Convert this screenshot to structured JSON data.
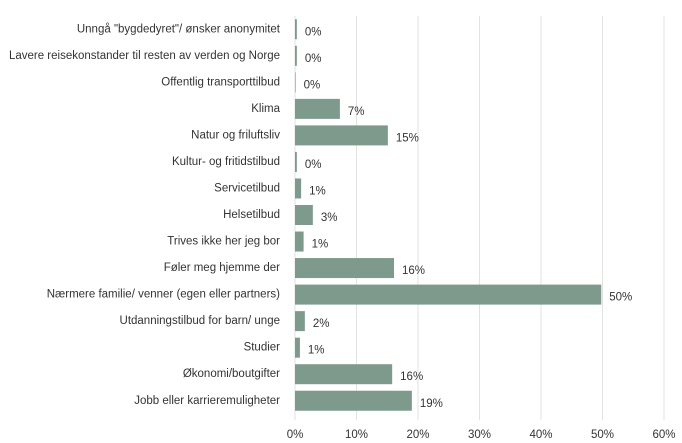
{
  "chart_data": {
    "type": "bar",
    "orientation": "horizontal",
    "categories": [
      "Unngå \"bygdedyret\"/ ønsker anonymitet",
      "Lavere reisekonstander til resten av verden og Norge",
      "Offentlig transporttilbud",
      "Klima",
      "Natur og friluftsliv",
      "Kultur- og fritidstilbud",
      "Servicetilbud",
      "Helsetilbud",
      "Trives ikke her jeg bor",
      "Føler meg hjemme der",
      "Nærmere familie/ venner (egen eller partners)",
      "Utdanningstilbud for barn/ unge",
      "Studier",
      "Økonomi/boutgifter",
      "Jobb eller karrieremuligheter"
    ],
    "values": [
      0.3,
      0.3,
      0.1,
      7.3,
      15.1,
      0.3,
      1.0,
      2.9,
      1.4,
      16.1,
      49.8,
      1.6,
      0.8,
      15.8,
      19.0
    ],
    "value_labels": [
      "0%",
      "0%",
      "0%",
      "7%",
      "15%",
      "0%",
      "1%",
      "3%",
      "1%",
      "16%",
      "50%",
      "2%",
      "1%",
      "16%",
      "19%"
    ],
    "color": "#7d9a8c",
    "xlim": [
      0,
      60
    ],
    "xticks": [
      {
        "value": 0,
        "label": "0%"
      },
      {
        "value": 10,
        "label": "10%"
      },
      {
        "value": 20,
        "label": "20%"
      },
      {
        "value": 30,
        "label": "30%"
      },
      {
        "value": 40,
        "label": "40%"
      },
      {
        "value": 50,
        "label": "50%"
      },
      {
        "value": 60,
        "label": "60%"
      }
    ],
    "grid": true
  }
}
